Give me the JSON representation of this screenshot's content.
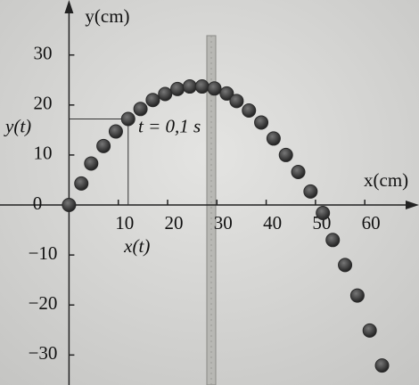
{
  "chart_data": {
    "type": "scatter",
    "x_label": "x(cm)",
    "y_label": "y(cm)",
    "annotations": {
      "x_of_t": "x(t)",
      "y_of_t": "y(t)",
      "time": "t = 0,1 s"
    },
    "highlight_point": {
      "x": 12,
      "y": 17.2
    },
    "x": [
      0,
      2.5,
      4.5,
      7,
      9.5,
      12,
      14.5,
      17,
      19.5,
      22,
      24.5,
      27,
      29.5,
      32,
      34,
      36.5,
      39,
      41.5,
      44,
      46.5,
      49,
      51.5,
      53.5,
      56,
      58.5,
      61,
      63.5
    ],
    "values": [
      0,
      4.3,
      8.3,
      11.8,
      14.7,
      17.2,
      19.2,
      21,
      22.2,
      23.2,
      23.7,
      23.7,
      23.3,
      22.3,
      20.8,
      18.9,
      16.5,
      13.3,
      10,
      6.6,
      2.7,
      -1.6,
      -7,
      -12,
      -18.1,
      -25.1,
      -32.1
    ],
    "color": "#2a2a2a",
    "xlim": [
      -14,
      71
    ],
    "ylim": [
      -36,
      41
    ],
    "xticks": [
      10,
      20,
      30,
      40,
      50,
      60
    ],
    "yticks": [
      {
        "value": -30,
        "label": "−30"
      },
      {
        "value": -20,
        "label": "−20"
      },
      {
        "value": -10,
        "label": "−10"
      },
      0,
      10,
      20,
      30
    ]
  }
}
